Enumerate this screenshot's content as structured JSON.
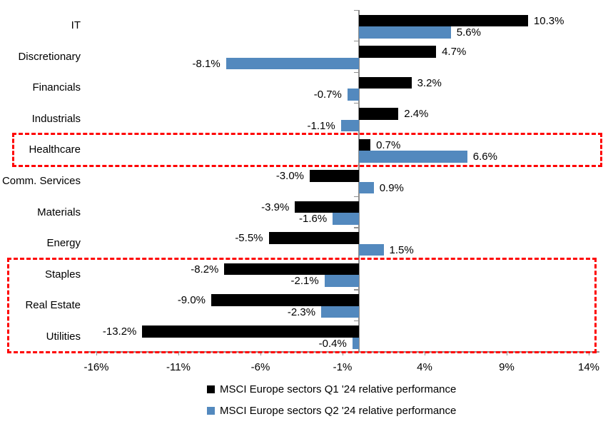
{
  "chart_data": {
    "type": "bar",
    "orientation": "horizontal",
    "categories": [
      "IT",
      "Discretionary",
      "Financials",
      "Industrials",
      "Healthcare",
      "Comm. Services",
      "Materials",
      "Energy",
      "Staples",
      "Real Estate",
      "Utilities"
    ],
    "series": [
      {
        "name": "MSCI Europe sectors Q1 '24 relative performance",
        "color": "#000000",
        "values": [
          10.3,
          4.7,
          3.2,
          2.4,
          0.7,
          -3.0,
          -3.9,
          -5.5,
          -8.2,
          -9.0,
          -13.2
        ],
        "labels": [
          "10.3%",
          "4.7%",
          "3.2%",
          "2.4%",
          "0.7%",
          "-3.0%",
          "-3.9%",
          "-5.5%",
          "-8.2%",
          "-9.0%",
          "-13.2%"
        ]
      },
      {
        "name": "MSCI Europe sectors Q2 '24 relative performance",
        "color": "#5389BE",
        "values": [
          5.6,
          -8.1,
          -0.7,
          -1.1,
          6.6,
          0.9,
          -1.6,
          1.5,
          -2.1,
          -2.3,
          -0.4
        ],
        "labels": [
          "5.6%",
          "-8.1%",
          "-0.7%",
          "-1.1%",
          "6.6%",
          "0.9%",
          "-1.6%",
          "1.5%",
          "-2.1%",
          "-2.3%",
          "-0.4%"
        ]
      }
    ],
    "xlabel": "",
    "ylabel": "",
    "x_ticks": {
      "values": [
        -16,
        -11,
        -6,
        -1,
        4,
        9,
        14
      ],
      "labels": [
        "-16%",
        "-11%",
        "-6%",
        "-1%",
        "4%",
        "9%",
        "14%"
      ]
    },
    "xlim": [
      -16.5,
      14.7
    ],
    "grid": false,
    "legend_position": "bottom",
    "axis_color": "#8f8f8f",
    "highlight_color": "#FE0000",
    "highlight_boxes": [
      {
        "sectors": [
          "Healthcare"
        ],
        "style": "dashed"
      },
      {
        "sectors": [
          "Staples",
          "Real Estate",
          "Utilities"
        ],
        "style": "dashed"
      }
    ]
  }
}
